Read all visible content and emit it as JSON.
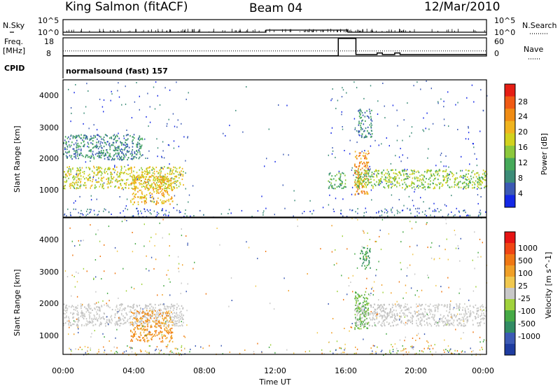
{
  "header": {
    "station": "King Salmon (fitACF)",
    "beam": "Beam 04",
    "date": "12/Mar/2010"
  },
  "cpid_label": "CPID",
  "cpid_text": "normalsound (fast) 157",
  "nsky": {
    "left_label": "N.Sky",
    "right_label": "N.Search",
    "left_ticks": [
      "10^5",
      "10^0"
    ],
    "right_ticks": [
      "10^5",
      "10^0"
    ]
  },
  "freq": {
    "left_label_1": "Freq.",
    "left_label_2": "[MHz]",
    "right_label": "Nave",
    "left_ticks": [
      "18",
      "8"
    ],
    "right_ticks": [
      "60",
      "0"
    ],
    "freq_series": [
      [
        0,
        10.8
      ],
      [
        6,
        10.8
      ],
      [
        11.5,
        10.8
      ],
      [
        14.5,
        10.8
      ],
      [
        18,
        10.8
      ],
      [
        24,
        10.8
      ]
    ],
    "nave_series": [
      [
        0,
        1
      ],
      [
        15.6,
        1
      ],
      [
        15.6,
        58
      ],
      [
        16.6,
        58
      ],
      [
        16.6,
        5
      ],
      [
        17.8,
        5
      ],
      [
        17.8,
        10
      ],
      [
        18.1,
        10
      ],
      [
        18.1,
        5
      ],
      [
        18.8,
        5
      ],
      [
        18.8,
        10
      ],
      [
        19.1,
        10
      ],
      [
        19.1,
        5
      ],
      [
        24,
        5
      ]
    ]
  },
  "chart_data": [
    {
      "type": "heatmap",
      "title": "Power",
      "xlabel": "",
      "ylabel": "Slant Range [km]",
      "xlim": [
        0,
        24
      ],
      "ylim": [
        180,
        4500
      ],
      "yticks": [
        "4000",
        "3000",
        "2000",
        "1000"
      ],
      "colorbar_label": "Power [dB]",
      "colorbar_ticks": [
        "28",
        "24",
        "20",
        "16",
        "12",
        "8",
        "4"
      ],
      "colorbar_colors": [
        "#1428e6",
        "#3c5ab4",
        "#3c8c78",
        "#46aa5a",
        "#8cc83c",
        "#d2d21e",
        "#f0b41e",
        "#f08c14",
        "#f05a14",
        "#e61e14"
      ],
      "regions": [
        {
          "x": [
            0,
            6.8
          ],
          "y": [
            1100,
            1800
          ],
          "level": 5
        },
        {
          "x": [
            3.8,
            6.2
          ],
          "y": [
            600,
            1500
          ],
          "level": 6
        },
        {
          "x": [
            0,
            4.5
          ],
          "y": [
            2000,
            2800
          ],
          "level": 2
        },
        {
          "x": [
            15,
            16
          ],
          "y": [
            1100,
            1600
          ],
          "level": 3
        },
        {
          "x": [
            16.5,
            17.3
          ],
          "y": [
            900,
            2300
          ],
          "level": 7
        },
        {
          "x": [
            16.5,
            24
          ],
          "y": [
            1100,
            1700
          ],
          "level": 4
        },
        {
          "x": [
            16.7,
            17.5
          ],
          "y": [
            2700,
            3600
          ],
          "level": 2
        }
      ]
    },
    {
      "type": "heatmap",
      "title": "Velocity",
      "xlabel": "Time UT",
      "ylabel": "Slant Range [km]",
      "xlim": [
        0,
        24
      ],
      "ylim": [
        180,
        4500
      ],
      "xticks": [
        "00:00",
        "04:00",
        "08:00",
        "12:00",
        "16:00",
        "20:00",
        "00:00"
      ],
      "yticks": [
        "4000",
        "3000",
        "2000",
        "1000"
      ],
      "colorbar_label": "Velocity [m s^-1]",
      "colorbar_ticks": [
        "1000",
        "500",
        "100",
        "25",
        "-25",
        "-100",
        "-500",
        "-1000"
      ],
      "colorbar_colors": [
        "#1e3ca0",
        "#3c5ab4",
        "#328c64",
        "#46aa46",
        "#a0d23c",
        "#c8c8c8",
        "#f0c850",
        "#f0a028",
        "#f07814",
        "#f04614",
        "#e61414"
      ],
      "regions": [
        {
          "x": [
            0,
            6.8
          ],
          "y": [
            1100,
            1800
          ],
          "level": "gray"
        },
        {
          "x": [
            3.8,
            6.2
          ],
          "y": [
            600,
            1600
          ],
          "level": "orange"
        },
        {
          "x": [
            16.5,
            24
          ],
          "y": [
            1100,
            1800
          ],
          "level": "gray"
        },
        {
          "x": [
            16.5,
            17.3
          ],
          "y": [
            1000,
            2200
          ],
          "level": "green"
        },
        {
          "x": [
            16.8,
            17.4
          ],
          "y": [
            2900,
            3600
          ],
          "level": "darkgreen"
        }
      ]
    }
  ]
}
